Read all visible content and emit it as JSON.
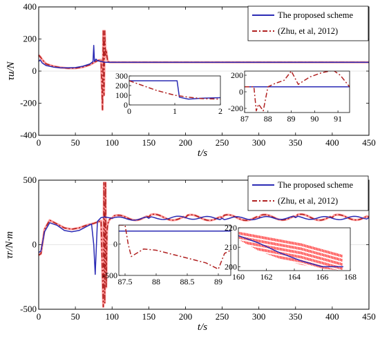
{
  "figure": {
    "colors": {
      "proposed": "#2a2ab4",
      "zhu": "#b02020",
      "zhu_fill": "#ff2020",
      "axis": "#000000"
    }
  },
  "chart_data": [
    {
      "id": "top",
      "type": "line",
      "ylabel": "τu/N",
      "xlabel": "t/s",
      "xlim": [
        0,
        450
      ],
      "ylim": [
        -400,
        400
      ],
      "xticks": [
        0,
        50,
        100,
        150,
        200,
        250,
        300,
        350,
        400,
        450
      ],
      "yticks": [
        400,
        200,
        0,
        -200,
        -400
      ],
      "legend_position": "top-right",
      "series": [
        {
          "name": "The proposed scheme",
          "color": "#2a2ab4",
          "dash": "solid",
          "x": [
            0,
            2,
            5,
            10,
            20,
            30,
            40,
            50,
            60,
            70,
            74,
            75,
            76,
            77,
            78,
            80,
            85,
            90,
            100,
            450
          ],
          "y": [
            60,
            70,
            50,
            35,
            25,
            20,
            20,
            22,
            30,
            45,
            60,
            160,
            60,
            65,
            75,
            65,
            60,
            55,
            55,
            55
          ]
        },
        {
          "name": "(Zhu, et al, 2012)",
          "color": "#b02020",
          "dash": "dashdot",
          "x": [
            0,
            2,
            5,
            10,
            20,
            30,
            40,
            50,
            60,
            70,
            80,
            85,
            87,
            88,
            89,
            90,
            91,
            92,
            94,
            97,
            100,
            450
          ],
          "y": [
            100,
            90,
            70,
            45,
            30,
            22,
            18,
            18,
            25,
            40,
            65,
            70,
            -240,
            250,
            -150,
            250,
            90,
            130,
            60,
            55,
            55,
            55
          ]
        }
      ],
      "insets": [
        {
          "xlim": [
            0,
            2
          ],
          "ylim": [
            0,
            300
          ],
          "xticks": [
            0,
            1,
            2
          ],
          "yticks": [
            300,
            200,
            100,
            0
          ],
          "series": [
            {
              "name": "The proposed scheme",
              "x": [
                0,
                1.05,
                1.1,
                1.3,
                1.6,
                2.0
              ],
              "y": [
                250,
                250,
                80,
                60,
                70,
                75
              ]
            },
            {
              "name": "(Zhu, et al, 2012)",
              "x": [
                0,
                0.3,
                0.6,
                1.0,
                1.3,
                1.6,
                2.0
              ],
              "y": [
                250,
                200,
                150,
                100,
                80,
                65,
                60
              ]
            }
          ]
        },
        {
          "xlim": [
            87,
            91.5
          ],
          "ylim": [
            -250,
            250
          ],
          "xticks": [
            87,
            88,
            89,
            90,
            91
          ],
          "yticks": [
            200,
            0,
            -200
          ],
          "series": [
            {
              "name": "The proposed scheme",
              "x": [
                87,
                91.5
              ],
              "y": [
                60,
                60
              ]
            },
            {
              "name": "(Zhu, et al, 2012)",
              "x": [
                87,
                87.4,
                87.5,
                87.6,
                87.8,
                88.0,
                88.3,
                88.7,
                89.0,
                89.3,
                89.8,
                90.3,
                90.8,
                91.1,
                91.5
              ],
              "y": [
                60,
                60,
                -230,
                -150,
                -230,
                60,
                100,
                140,
                250,
                90,
                180,
                230,
                260,
                200,
                60
              ]
            }
          ]
        }
      ]
    },
    {
      "id": "bottom",
      "type": "line",
      "ylabel": "τr/N·m",
      "xlabel": "t/s",
      "xlim": [
        0,
        450
      ],
      "ylim": [
        -500,
        500
      ],
      "xticks": [
        0,
        50,
        100,
        150,
        200,
        250,
        300,
        350,
        400,
        450
      ],
      "yticks": [
        500,
        0,
        -500
      ],
      "legend_position": "top-right",
      "series": [
        {
          "name": "The proposed scheme",
          "color": "#2a2ab4",
          "dash": "solid",
          "x": [
            0,
            3,
            8,
            15,
            25,
            35,
            45,
            55,
            65,
            72,
            75,
            77,
            80,
            85,
            90,
            100,
            120,
            150,
            200,
            250,
            300,
            350,
            400,
            450
          ],
          "y": [
            -60,
            -50,
            100,
            170,
            150,
            110,
            100,
            110,
            140,
            160,
            0,
            -230,
            180,
            210,
            215,
            205,
            200,
            205,
            210,
            205,
            205,
            210,
            205,
            210
          ],
          "oscillation": {
            "from": 100,
            "amplitude": 12,
            "period": 40
          }
        },
        {
          "name": "(Zhu, et al, 2012)",
          "color": "#b02020",
          "dash": "dashdot",
          "x": [
            0,
            3,
            8,
            15,
            25,
            35,
            45,
            55,
            65,
            75,
            85,
            88,
            89,
            90,
            91,
            92,
            93,
            94,
            96,
            100,
            120,
            150,
            200,
            250,
            300,
            350,
            400,
            450
          ],
          "y": [
            -80,
            -70,
            120,
            190,
            160,
            130,
            120,
            130,
            150,
            165,
            185,
            -480,
            480,
            -450,
            480,
            -330,
            100,
            160,
            190,
            205,
            210,
            215,
            210,
            210,
            210,
            215,
            210,
            215
          ],
          "oscillation": {
            "from": 95,
            "amplitude": 22,
            "period": 50
          }
        }
      ],
      "insets": [
        {
          "xlim": [
            87.4,
            89.2
          ],
          "ylim": [
            -500,
            300
          ],
          "xticks": [
            87.5,
            88,
            88.5,
            89
          ],
          "yticks": [
            0,
            -500
          ],
          "series": [
            {
              "name": "The proposed scheme",
              "x": [
                87.4,
                89.2
              ],
              "y": [
                205,
                205
              ]
            },
            {
              "name": "(Zhu, et al, 2012)",
              "x": [
                87.4,
                87.5,
                87.55,
                87.6,
                87.8,
                88.0,
                88.4,
                88.8,
                89.0,
                89.1,
                89.2
              ],
              "y": [
                300,
                300,
                0,
                -200,
                -80,
                -100,
                -200,
                -300,
                -400,
                -150,
                -100
              ]
            }
          ]
        },
        {
          "xlim": [
            160,
            168
          ],
          "ylim": [
            198,
            220
          ],
          "xticks": [
            160,
            162,
            164,
            166,
            168
          ],
          "yticks": [
            220,
            210,
            200
          ],
          "series": [
            {
              "name": "The proposed scheme",
              "x": [
                160,
                161.5,
                163,
                164.5,
                166,
                167.5
              ],
              "y": [
                216,
                212,
                207,
                203,
                200,
                200
              ]
            }
          ],
          "band": {
            "name": "(Zhu, et al, 2012)",
            "x": [
              160,
              161.5,
              163,
              164.5,
              166,
              167.5
            ],
            "top": [
              218,
              216,
              214,
              212,
              209,
              206
            ],
            "bottom": [
              214,
              208,
              204,
              201,
              199,
              198
            ]
          }
        }
      ]
    }
  ]
}
